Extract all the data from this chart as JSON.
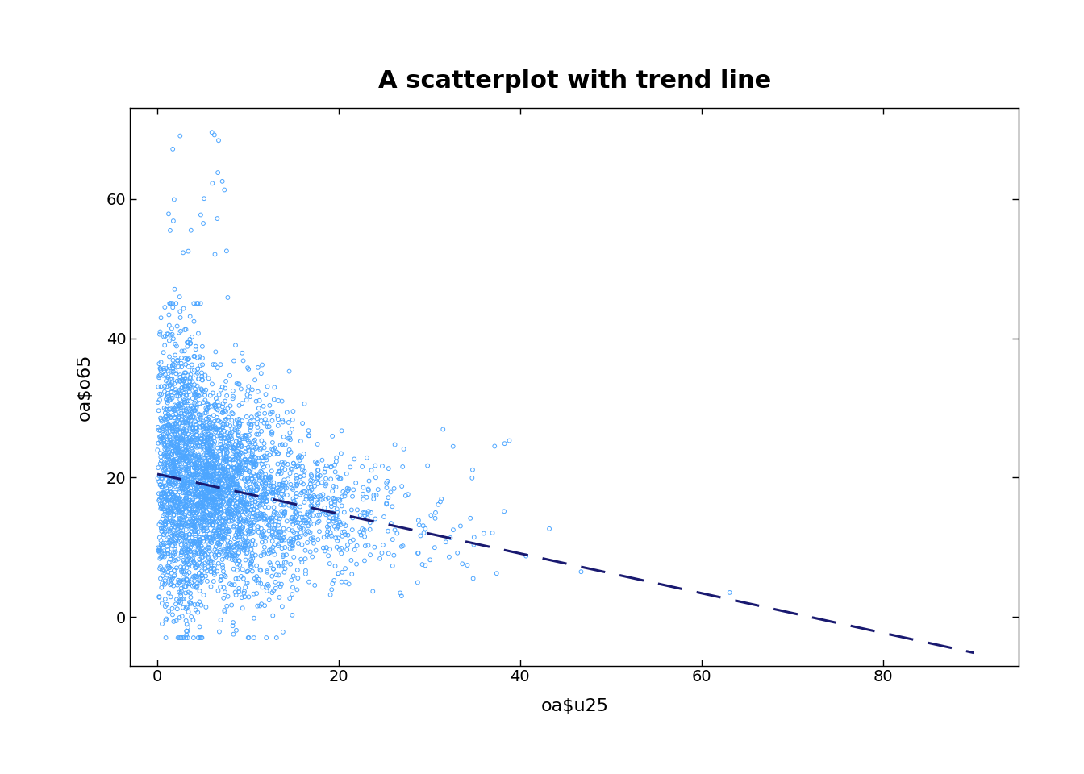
{
  "title": "A scatterplot with trend line",
  "xlabel": "oa$u25",
  "ylabel": "oa$o65",
  "xlim": [
    -3,
    95
  ],
  "ylim": [
    -7,
    73
  ],
  "xticks": [
    0,
    20,
    40,
    60,
    80
  ],
  "yticks": [
    0,
    20,
    40,
    60
  ],
  "scatter_color": "#4DA6FF",
  "trend_color": "#191970",
  "trend_intercept": 20.5,
  "trend_slope": -0.285,
  "n_points": 3500,
  "seed": 42,
  "background_color": "#ffffff",
  "title_fontsize": 22,
  "label_fontsize": 16,
  "tick_fontsize": 14,
  "marker_size": 12,
  "linewidth": 0.7
}
